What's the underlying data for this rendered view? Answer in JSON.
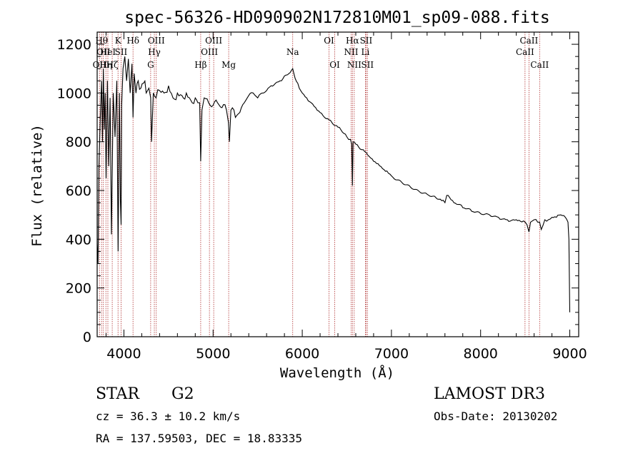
{
  "chart_data": {
    "type": "line",
    "title": "spec-56326-HD090902N172810M01_sp09-088.fits",
    "xlabel": "Wavelength (Å)",
    "ylabel": "Flux (relative)",
    "xlim": [
      3700,
      9100
    ],
    "ylim": [
      0,
      1250
    ],
    "xticks": [
      4000,
      5000,
      6000,
      7000,
      8000,
      9000
    ],
    "yticks": [
      0,
      200,
      400,
      600,
      800,
      1000,
      1200
    ],
    "grid": false,
    "series": [
      {
        "name": "spectrum",
        "x": [
          3700,
          3710,
          3720,
          3735,
          3750,
          3760,
          3770,
          3780,
          3790,
          3800,
          3815,
          3830,
          3845,
          3860,
          3880,
          3900,
          3920,
          3935,
          3950,
          3960,
          3968,
          3975,
          3990,
          4010,
          4030,
          4050,
          4070,
          4090,
          4102,
          4115,
          4135,
          4160,
          4190,
          4220,
          4250,
          4280,
          4300,
          4310,
          4330,
          4360,
          4400,
          4450,
          4500,
          4550,
          4600,
          4650,
          4700,
          4750,
          4800,
          4830,
          4850,
          4861,
          4875,
          4900,
          4950,
          5000,
          5050,
          5100,
          5150,
          5172,
          5183,
          5200,
          5250,
          5300,
          5350,
          5400,
          5450,
          5500,
          5550,
          5600,
          5650,
          5700,
          5750,
          5800,
          5850,
          5893,
          5920,
          5950,
          6000,
          6050,
          6100,
          6150,
          6200,
          6250,
          6300,
          6350,
          6400,
          6450,
          6500,
          6540,
          6555,
          6563,
          6570,
          6600,
          6650,
          6700,
          6750,
          6800,
          6850,
          6900,
          6950,
          7000,
          7100,
          7200,
          7300,
          7400,
          7500,
          7580,
          7600,
          7620,
          7700,
          7800,
          7900,
          8000,
          8100,
          8200,
          8300,
          8400,
          8480,
          8500,
          8520,
          8542,
          8560,
          8600,
          8640,
          8662,
          8680,
          8720,
          8760,
          8800,
          8850,
          8900,
          8950,
          8980,
          8990,
          9000
        ],
        "y": [
          380,
          300,
          700,
          900,
          1050,
          800,
          1100,
          850,
          1000,
          650,
          1050,
          700,
          980,
          420,
          1000,
          820,
          1050,
          350,
          1000,
          560,
          460,
          950,
          1100,
          1150,
          1050,
          1140,
          1000,
          1120,
          900,
          1080,
          1000,
          1050,
          1020,
          1040,
          1000,
          1020,
          980,
          800,
          1000,
          980,
          1010,
          1000,
          1030,
          980,
          1000,
          990,
          1000,
          970,
          980,
          960,
          960,
          720,
          930,
          980,
          960,
          950,
          960,
          940,
          930,
          880,
          800,
          930,
          900,
          920,
          960,
          990,
          1000,
          980,
          1000,
          1010,
          1030,
          1040,
          1050,
          1070,
          1080,
          1100,
          1060,
          1040,
          1000,
          980,
          960,
          940,
          920,
          900,
          890,
          870,
          860,
          840,
          820,
          810,
          790,
          620,
          800,
          790,
          770,
          760,
          740,
          720,
          710,
          690,
          680,
          660,
          640,
          620,
          600,
          585,
          570,
          560,
          550,
          580,
          550,
          530,
          515,
          505,
          500,
          490,
          480,
          480,
          475,
          470,
          460,
          430,
          470,
          480,
          470,
          470,
          440,
          480,
          480,
          490,
          490,
          500,
          490,
          470,
          400,
          100
        ]
      }
    ],
    "spectral_lines": [
      {
        "x": 3726,
        "label": "OII",
        "row": 3
      },
      {
        "x": 3750,
        "label": "Hθ",
        "row": 1
      },
      {
        "x": 3770,
        "label": "OII",
        "row": 2
      },
      {
        "x": 3798,
        "label": "Hη",
        "row": 3
      },
      {
        "x": 3820,
        "label": "HeI",
        "row": 2
      },
      {
        "x": 3869,
        "label": "Hζ",
        "row": 3
      },
      {
        "x": 3934,
        "label": "K",
        "row": 1
      },
      {
        "x": 3968,
        "label": "SII",
        "row": 2
      },
      {
        "x": 4102,
        "label": "Hδ",
        "row": 1
      },
      {
        "x": 4300,
        "label": "G",
        "row": 3
      },
      {
        "x": 4341,
        "label": "Hγ",
        "row": 2
      },
      {
        "x": 4363,
        "label": "OIII",
        "row": 1
      },
      {
        "x": 4861,
        "label": "Hβ",
        "row": 3
      },
      {
        "x": 4959,
        "label": "OIII",
        "row": 2
      },
      {
        "x": 5007,
        "label": "OIII",
        "row": 1
      },
      {
        "x": 5175,
        "label": "Mg",
        "row": 3
      },
      {
        "x": 5893,
        "label": "Na",
        "row": 2
      },
      {
        "x": 6300,
        "label": "OI",
        "row": 1
      },
      {
        "x": 6364,
        "label": "OI",
        "row": 3
      },
      {
        "x": 6548,
        "label": "NII",
        "row": 2
      },
      {
        "x": 6563,
        "label": "Hα",
        "row": 1
      },
      {
        "x": 6583,
        "label": "NII",
        "row": 3
      },
      {
        "x": 6708,
        "label": "Li",
        "row": 2
      },
      {
        "x": 6716,
        "label": "SII",
        "row": 1
      },
      {
        "x": 6731,
        "label": "SII",
        "row": 3
      },
      {
        "x": 8498,
        "label": "CaII",
        "row": 2
      },
      {
        "x": 8542,
        "label": "CaII",
        "row": 1
      },
      {
        "x": 8662,
        "label": "CaII",
        "row": 3
      }
    ]
  },
  "info": {
    "object_class": "STAR",
    "subclass": "G2",
    "survey": "LAMOST DR3",
    "redshift": "cz = 36.3 ± 10.2 km/s",
    "obs_date": "Obs-Date: 20130202",
    "coords": "RA = 137.59503, DEC =  18.83335"
  },
  "colors": {
    "spectrum": "#000000",
    "line_marker": "#b03030",
    "axis": "#000000",
    "background": "#ffffff"
  }
}
